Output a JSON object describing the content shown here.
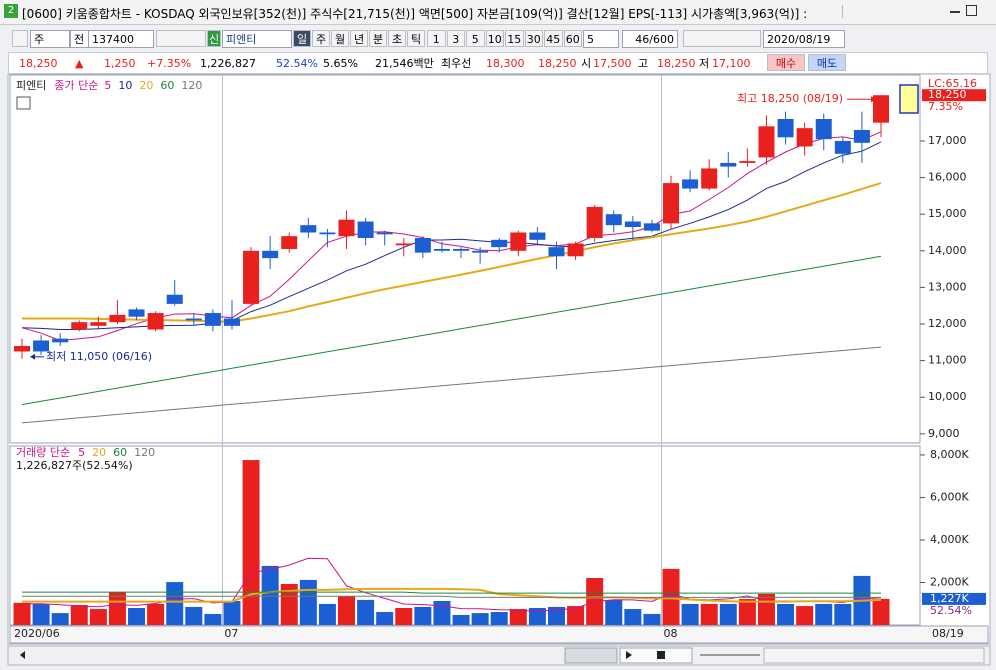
{
  "window": {
    "icon": "2",
    "title": "[0600] 키움종합차트 - KOSDAQ 외국인보유[352(천)] 주식수[21,715(천)] 액면[500] 자본금[109(억)] 결산[12월] EPS[-113] 시가총액[3,963(억)] :",
    "toolbar": {
      "period": "주",
      "market": "전",
      "code": "137400",
      "badge": "신",
      "name": "피엔티",
      "intervals": [
        "일",
        "주",
        "월",
        "년",
        "분",
        "초",
        "틱"
      ],
      "minutes": [
        "1",
        "3",
        "5",
        "10",
        "15",
        "30",
        "45",
        "60"
      ],
      "count_unit": "5",
      "count": "46/600",
      "date": "2020/08/19"
    },
    "info": {
      "price": "18,250",
      "arrow": "▲",
      "change": "1,250",
      "change_rate": "+7.35%",
      "volume": "1,226,827",
      "volume_ratio": "52.54%",
      "turnover": "5.65%",
      "amount": "21,546백만",
      "best_label": "최우선",
      "best_ask": "18,300",
      "best_bid": "18,250",
      "open_label": "시",
      "open": "17,500",
      "high_label": "고",
      "high": "18,250",
      "low_label": "저",
      "low": "17,100",
      "buy": "매수",
      "sell": "매도"
    }
  },
  "chart_data": [
    {
      "type": "candlestick",
      "title": "피엔티",
      "ma_label": "종가 단순",
      "categories": [
        "2020/06",
        null,
        null,
        null,
        null,
        null,
        null,
        null,
        null,
        null,
        null,
        "07",
        null,
        null,
        null,
        null,
        null,
        null,
        null,
        null,
        null,
        null,
        null,
        null,
        null,
        null,
        null,
        null,
        null,
        null,
        null,
        null,
        null,
        null,
        "08",
        null,
        null,
        null,
        null,
        null,
        null,
        null,
        null,
        null,
        null,
        null
      ],
      "open": [
        11250,
        11550,
        11600,
        11850,
        11950,
        12050,
        12400,
        11850,
        12800,
        12150,
        12300,
        12150,
        12550,
        14000,
        14050,
        14700,
        14500,
        14400,
        14800,
        14500,
        14150,
        14350,
        14050,
        14050,
        14000,
        14300,
        14000,
        14500,
        14100,
        13850,
        14350,
        15000,
        14800,
        14750,
        14750,
        15950,
        15700,
        16400,
        16400,
        16550,
        17600,
        16850,
        17600,
        17000,
        17300,
        17500
      ],
      "high": [
        11600,
        11700,
        11750,
        12100,
        12200,
        12650,
        12450,
        12350,
        13200,
        12300,
        12400,
        12650,
        14100,
        14400,
        14500,
        14900,
        14600,
        15100,
        14900,
        14550,
        14350,
        14400,
        14250,
        14100,
        14100,
        14350,
        14550,
        14650,
        14250,
        14250,
        15250,
        15100,
        14950,
        14850,
        16050,
        16200,
        16500,
        16700,
        16800,
        17700,
        17800,
        17500,
        17750,
        17100,
        17800,
        18250
      ],
      "low": [
        11050,
        11150,
        11400,
        11800,
        11850,
        12000,
        12100,
        11800,
        12500,
        11950,
        11800,
        11850,
        12500,
        13500,
        13950,
        14350,
        14100,
        14050,
        14150,
        14150,
        13850,
        13800,
        13950,
        13800,
        13650,
        13950,
        13850,
        14150,
        13500,
        13750,
        14250,
        14500,
        14300,
        14500,
        14600,
        15600,
        15650,
        16000,
        16300,
        16350,
        16900,
        16600,
        16750,
        16400,
        16400,
        17100
      ],
      "close": [
        11400,
        11250,
        11500,
        12050,
        12050,
        12250,
        12200,
        12300,
        12550,
        12100,
        11950,
        11950,
        14000,
        13800,
        14400,
        14500,
        14450,
        14850,
        14350,
        14450,
        14200,
        13950,
        14000,
        14000,
        13950,
        14100,
        14500,
        14300,
        13850,
        14200,
        15200,
        14700,
        14650,
        14550,
        15850,
        15700,
        16250,
        16300,
        16450,
        17400,
        17100,
        17350,
        17050,
        16650,
        16950,
        18250
      ],
      "up_color": "#e8201e",
      "down_color": "#1c5fd2",
      "series": [
        {
          "name": "5",
          "color": "#c8168c",
          "values": [
            11900,
            11750,
            11550,
            11600,
            11650,
            11820,
            12010,
            12170,
            12270,
            12280,
            12220,
            12170,
            12510,
            12760,
            13220,
            13730,
            14230,
            14400,
            14510,
            14520,
            14460,
            14360,
            14190,
            14120,
            14020,
            14000,
            14110,
            14170,
            14140,
            14190,
            14410,
            14450,
            14520,
            14660,
            14990,
            15090,
            15400,
            15730,
            16110,
            16420,
            16700,
            16920,
            17070,
            17110,
            17020,
            17250
          ]
        },
        {
          "name": "10",
          "color": "#1b2a8c",
          "values": [
            11900,
            11880,
            11850,
            11850,
            11870,
            11900,
            11920,
            11950,
            11960,
            11965,
            12020,
            12090,
            12340,
            12515,
            12750,
            12975,
            13200,
            13455,
            13635,
            13870,
            14095,
            14295,
            14295,
            14315,
            14270,
            14230,
            14235,
            14180,
            14130,
            14105,
            14205,
            14280,
            14345,
            14400,
            14590,
            14750,
            14925,
            15125,
            15385,
            15705,
            15895,
            16160,
            16400,
            16610,
            16720,
            16975
          ]
        },
        {
          "name": "20",
          "color": "#e8a81a",
          "values": [
            12150,
            12150,
            12150,
            12150,
            12140,
            12130,
            12120,
            12110,
            12100,
            12090,
            12080,
            12070,
            12150,
            12250,
            12350,
            12480,
            12600,
            12720,
            12840,
            12950,
            13050,
            13150,
            13250,
            13350,
            13450,
            13560,
            13670,
            13780,
            13880,
            13990,
            14100,
            14200,
            14290,
            14370,
            14450,
            14530,
            14610,
            14700,
            14800,
            14930,
            15080,
            15230,
            15380,
            15530,
            15690,
            15850
          ]
        },
        {
          "name": "60",
          "color": "#1a8a3a",
          "values": [
            9800,
            9890,
            9980,
            10070,
            10160,
            10250,
            10340,
            10430,
            10520,
            10610,
            10700,
            10790,
            10880,
            10970,
            11060,
            11150,
            11240,
            11330,
            11420,
            11510,
            11600,
            11690,
            11780,
            11870,
            11960,
            12050,
            12140,
            12230,
            12320,
            12410,
            12500,
            12590,
            12680,
            12770,
            12860,
            12950,
            13040,
            13130,
            13220,
            13310,
            13400,
            13490,
            13580,
            13670,
            13760,
            13850
          ]
        },
        {
          "name": "120",
          "color": "#777777",
          "values": [
            9300,
            9346,
            9392,
            9438,
            9484,
            9530,
            9576,
            9622,
            9668,
            9714,
            9760,
            9806,
            9852,
            9898,
            9944,
            9990,
            10036,
            10082,
            10128,
            10174,
            10220,
            10266,
            10312,
            10358,
            10404,
            10450,
            10496,
            10542,
            10588,
            10634,
            10680,
            10726,
            10772,
            10818,
            10864,
            10910,
            10956,
            11002,
            11048,
            11094,
            11140,
            11186,
            11232,
            11278,
            11324,
            11370
          ]
        }
      ],
      "ylim": [
        8750,
        18720
      ],
      "yticks": [
        {
          "value": 9000,
          "label": "9,000"
        },
        {
          "value": 10000,
          "label": "10,000"
        },
        {
          "value": 11000,
          "label": "11,000"
        },
        {
          "value": 12000,
          "label": "12,000"
        },
        {
          "value": 13000,
          "label": "13,000"
        },
        {
          "value": 14000,
          "label": "14,000"
        },
        {
          "value": 15000,
          "label": "15,000"
        },
        {
          "value": 16000,
          "label": "16,000"
        },
        {
          "value": 17000,
          "label": "17,000"
        }
      ],
      "annotations": [
        "최고 18,250 (08/19)",
        "최저 11,050 (06/16)"
      ],
      "top_label": "LC:65.16",
      "last_price_label": "18,250",
      "change_label": "7.35%",
      "cursor_date": "08/19"
    },
    {
      "type": "bar",
      "title": "거래량 단순",
      "summary": "1,226,827주(52.54%)",
      "values": [
        1040000,
        990000,
        560000,
        940000,
        750000,
        1550000,
        800000,
        990000,
        2020000,
        850000,
        520000,
        1130000,
        7760000,
        2780000,
        1930000,
        2120000,
        990000,
        1360000,
        1180000,
        610000,
        800000,
        850000,
        1130000,
        470000,
        560000,
        610000,
        750000,
        800000,
        850000,
        890000,
        2210000,
        1180000,
        750000,
        520000,
        2640000,
        990000,
        990000,
        990000,
        1220000,
        1460000,
        990000,
        890000,
        990000,
        990000,
        2310000,
        1226827
      ],
      "series": [
        {
          "name": "5",
          "color": "#c8168c",
          "values": [
            1000000,
            1000000,
            950000,
            900000,
            860000,
            960000,
            920000,
            1010000,
            1220000,
            1240000,
            1040000,
            1100000,
            2460000,
            2610000,
            2820000,
            3140000,
            3120000,
            1840000,
            1520000,
            1250000,
            990000,
            960000,
            910000,
            770000,
            760000,
            720000,
            700000,
            640000,
            710000,
            780000,
            1100000,
            1190000,
            1180000,
            1110000,
            1460000,
            1220000,
            1180000,
            1230000,
            1370000,
            1130000,
            1130000,
            1110000,
            1110000,
            1060000,
            1230000,
            1280000
          ]
        },
        {
          "name": "20",
          "color": "#e8a81a",
          "values": [
            1100000,
            1100000,
            1100000,
            1100000,
            1100000,
            1100000,
            1100000,
            1100000,
            1100000,
            1100000,
            1100000,
            1100000,
            1450000,
            1550000,
            1600000,
            1650000,
            1650000,
            1680000,
            1700000,
            1700000,
            1700000,
            1700000,
            1700000,
            1680000,
            1650000,
            1450000,
            1400000,
            1350000,
            1300000,
            1280000,
            1300000,
            1300000,
            1280000,
            1250000,
            1250000,
            1200000,
            1150000,
            1120000,
            1100000,
            1100000,
            1100000,
            1120000,
            1120000,
            1120000,
            1150000,
            1180000
          ]
        },
        {
          "name": "60",
          "color": "#1a8a3a",
          "values": [
            1550000,
            1550000,
            1550000,
            1550000,
            1550000,
            1550000,
            1550000,
            1550000,
            1550000,
            1550000,
            1550000,
            1550000,
            1550000,
            1550000,
            1550000,
            1550000,
            1550000,
            1550000,
            1550000,
            1550000,
            1550000,
            1500000,
            1500000,
            1500000,
            1500000,
            1500000,
            1500000,
            1500000,
            1500000,
            1500000,
            1500000,
            1500000,
            1500000,
            1500000,
            1500000,
            1500000,
            1500000,
            1500000,
            1500000,
            1500000,
            1500000,
            1500000,
            1500000,
            1500000,
            1500000,
            1500000
          ]
        },
        {
          "name": "120",
          "color": "#777777",
          "values": [
            1350000,
            1350000,
            1350000,
            1350000,
            1350000,
            1350000,
            1350000,
            1350000,
            1350000,
            1350000,
            1350000,
            1350000,
            1350000,
            1350000,
            1350000,
            1350000,
            1350000,
            1350000,
            1350000,
            1350000,
            1350000,
            1350000,
            1350000,
            1300000,
            1300000,
            1300000,
            1300000,
            1300000,
            1300000,
            1300000,
            1300000,
            1300000,
            1300000,
            1300000,
            1300000,
            1300000,
            1300000,
            1300000,
            1300000,
            1300000,
            1300000,
            1300000,
            1300000,
            1300000,
            1300000,
            1300000
          ]
        }
      ],
      "ylim": [
        0,
        8280000
      ],
      "yticks": [
        {
          "value": 2000000,
          "label": "2,000K"
        },
        {
          "value": 4000000,
          "label": "4,000K"
        },
        {
          "value": 6000000,
          "label": "6,000K"
        },
        {
          "value": 8000000,
          "label": "8,000K"
        }
      ],
      "latest_label": "1,227K",
      "latest_ratio": "52.54%"
    }
  ]
}
